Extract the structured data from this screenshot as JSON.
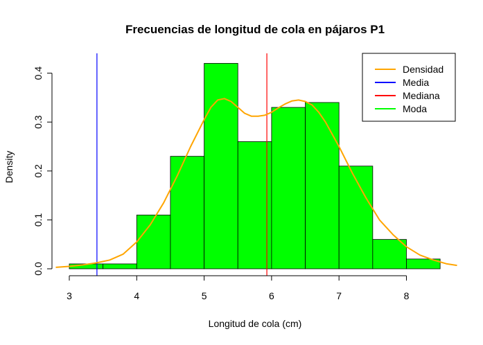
{
  "chart_data": {
    "type": "bar",
    "title": "Frecuencias de longitud de cola en pájaros P1",
    "xlabel": "Longitud de cola (cm)",
    "ylabel": "Density",
    "xlim": [
      3,
      8.5
    ],
    "ylim": [
      0,
      0.4
    ],
    "x_ticks": [
      "3",
      "4",
      "5",
      "6",
      "7",
      "8"
    ],
    "y_ticks": [
      "0.0",
      "0.1",
      "0.2",
      "0.3",
      "0.4"
    ],
    "bars": [
      {
        "x0": 3.0,
        "x1": 3.5,
        "density": 0.01
      },
      {
        "x0": 3.5,
        "x1": 4.0,
        "density": 0.01
      },
      {
        "x0": 4.0,
        "x1": 4.5,
        "density": 0.11
      },
      {
        "x0": 4.5,
        "x1": 5.0,
        "density": 0.23
      },
      {
        "x0": 5.0,
        "x1": 5.5,
        "density": 0.42
      },
      {
        "x0": 5.5,
        "x1": 6.0,
        "density": 0.26
      },
      {
        "x0": 6.0,
        "x1": 6.5,
        "density": 0.33
      },
      {
        "x0": 6.5,
        "x1": 7.0,
        "density": 0.34
      },
      {
        "x0": 7.0,
        "x1": 7.5,
        "density": 0.21
      },
      {
        "x0": 7.5,
        "x1": 8.0,
        "density": 0.06
      },
      {
        "x0": 8.0,
        "x1": 8.5,
        "density": 0.02
      }
    ],
    "bar_color": "#00FF00",
    "density_curve": {
      "name": "Densidad",
      "color": "#FFA500",
      "points": [
        [
          2.8,
          0.003
        ],
        [
          3.0,
          0.005
        ],
        [
          3.2,
          0.008
        ],
        [
          3.4,
          0.012
        ],
        [
          3.6,
          0.018
        ],
        [
          3.8,
          0.03
        ],
        [
          4.0,
          0.055
        ],
        [
          4.2,
          0.09
        ],
        [
          4.4,
          0.135
        ],
        [
          4.6,
          0.19
        ],
        [
          4.8,
          0.25
        ],
        [
          5.0,
          0.305
        ],
        [
          5.1,
          0.33
        ],
        [
          5.2,
          0.345
        ],
        [
          5.3,
          0.348
        ],
        [
          5.4,
          0.342
        ],
        [
          5.5,
          0.33
        ],
        [
          5.6,
          0.318
        ],
        [
          5.7,
          0.312
        ],
        [
          5.8,
          0.312
        ],
        [
          5.9,
          0.314
        ],
        [
          6.0,
          0.32
        ],
        [
          6.1,
          0.329
        ],
        [
          6.2,
          0.337
        ],
        [
          6.3,
          0.343
        ],
        [
          6.4,
          0.345
        ],
        [
          6.5,
          0.342
        ],
        [
          6.6,
          0.335
        ],
        [
          6.7,
          0.32
        ],
        [
          6.8,
          0.3
        ],
        [
          7.0,
          0.25
        ],
        [
          7.2,
          0.195
        ],
        [
          7.4,
          0.145
        ],
        [
          7.6,
          0.1
        ],
        [
          7.8,
          0.07
        ],
        [
          8.0,
          0.045
        ],
        [
          8.2,
          0.028
        ],
        [
          8.4,
          0.018
        ],
        [
          8.6,
          0.01
        ],
        [
          8.75,
          0.007
        ]
      ]
    },
    "vlines": [
      {
        "name": "Media",
        "x": 3.41,
        "color": "#0000FF"
      },
      {
        "name": "Mediana",
        "x": 5.93,
        "color": "#FF0000"
      }
    ],
    "legend": {
      "placement": "top-right",
      "entries": [
        {
          "label": "Densidad",
          "color": "#FFA500"
        },
        {
          "label": "Media",
          "color": "#0000FF"
        },
        {
          "label": "Mediana",
          "color": "#FF0000"
        },
        {
          "label": "Moda",
          "color": "#00FF00"
        }
      ]
    }
  }
}
